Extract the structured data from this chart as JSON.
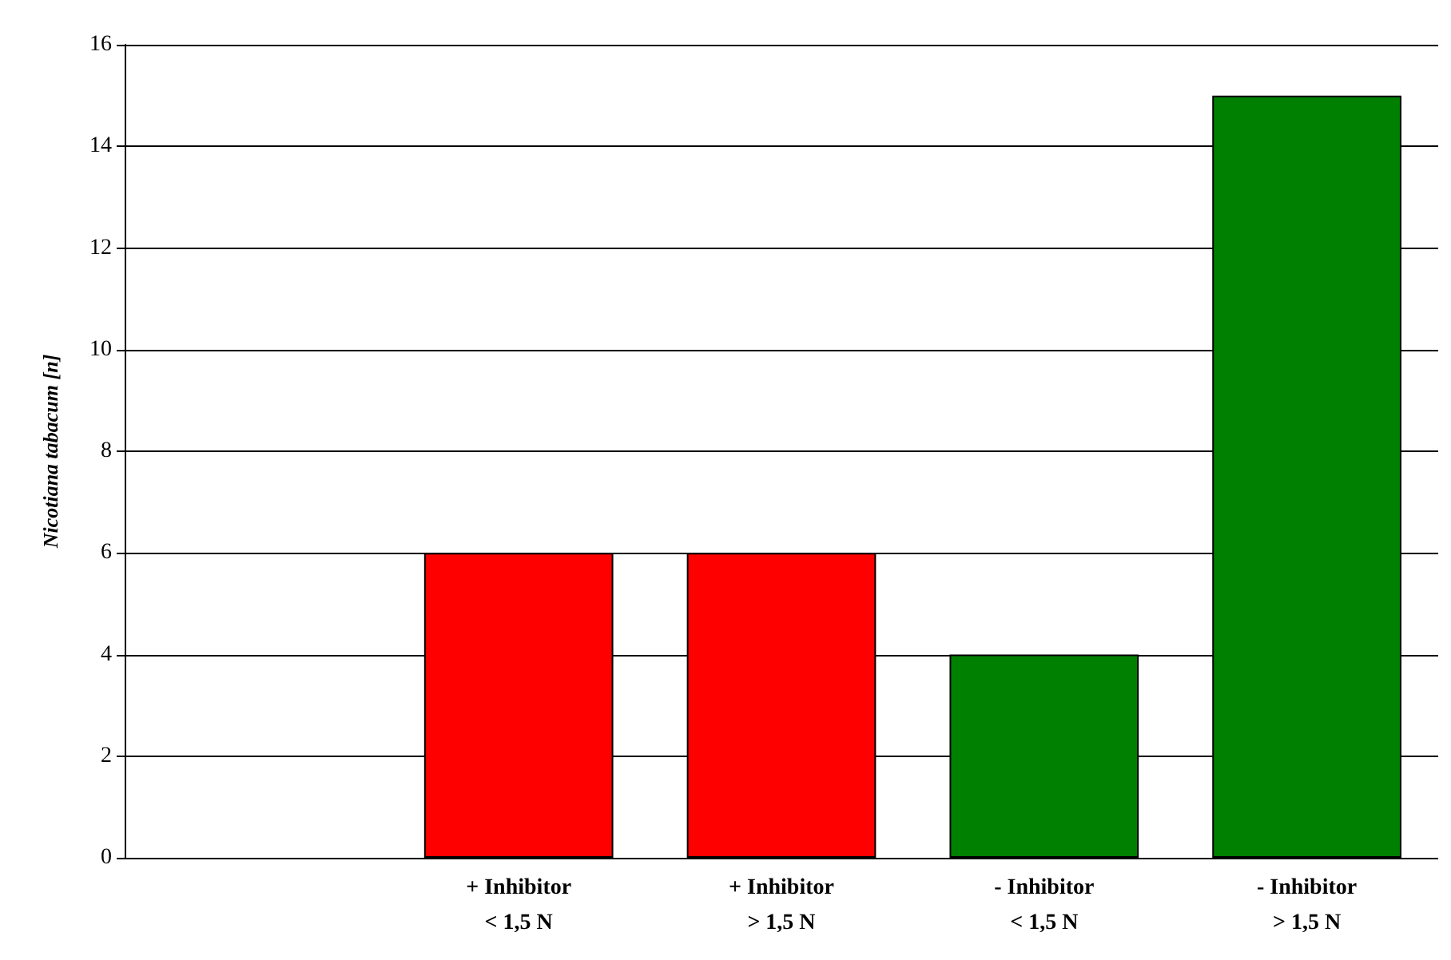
{
  "chart_data": {
    "type": "bar",
    "ylabel": "Nicotiana tabacum [n]",
    "categories": [
      null,
      "+ Inhibitor\n< 1,5 N",
      "+ Inhibitor\n> 1,5 N",
      "- Inhibitor\n< 1,5 N",
      "- Inhibitor\n> 1,5 N"
    ],
    "values": [
      null,
      6,
      6,
      4,
      15
    ],
    "colors": [
      "#ff0000",
      "#ff0000",
      "#ff0000",
      "#008000",
      "#008000"
    ],
    "ylim": [
      0,
      16
    ],
    "yticks": [
      0,
      2,
      4,
      6,
      8,
      10,
      12,
      14,
      16
    ],
    "grid": "y"
  }
}
